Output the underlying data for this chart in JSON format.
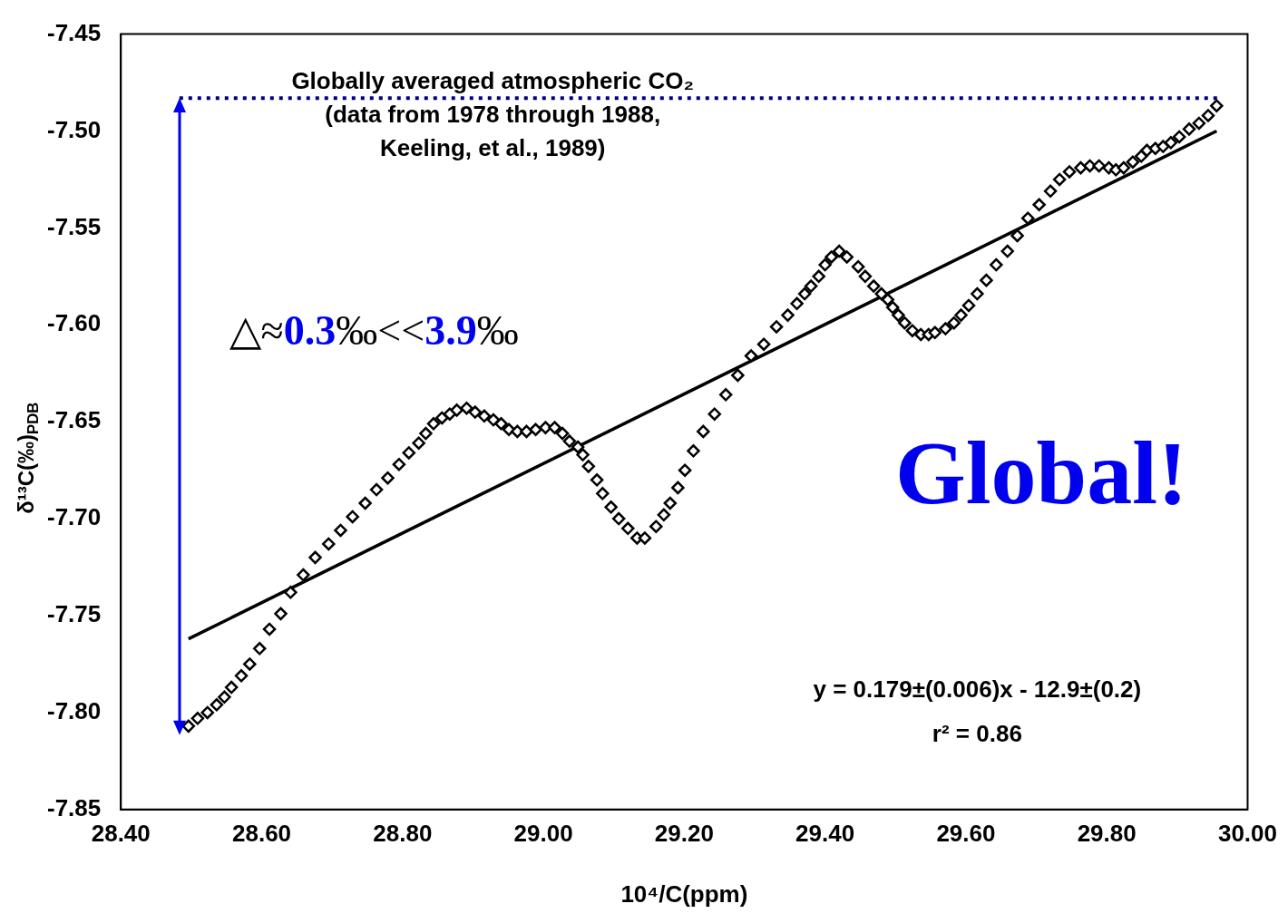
{
  "chart_data": {
    "type": "scatter",
    "xlabel": "10⁴/C(ppm)",
    "ylabel": "δ¹³C(‰)$_{PDB}$",
    "xlim": [
      28.4,
      30.0
    ],
    "xticks": [
      {
        "value": 28.4,
        "label": "28.40"
      },
      {
        "value": 28.6,
        "label": "28.60"
      },
      {
        "value": 28.8,
        "label": "28.80"
      },
      {
        "value": 29.0,
        "label": "29.00"
      },
      {
        "value": 29.2,
        "label": "29.20"
      },
      {
        "value": 29.4,
        "label": "29.40"
      },
      {
        "value": 29.6,
        "label": "29.60"
      },
      {
        "value": 29.8,
        "label": "29.80"
      },
      {
        "value": 30.0,
        "label": "30.00"
      }
    ],
    "ylim": [
      -7.85,
      -7.45
    ],
    "yticks": [
      {
        "value": -7.85,
        "label": "-7.85"
      },
      {
        "value": -7.8,
        "label": "-7.80"
      },
      {
        "value": -7.75,
        "label": "-7.75"
      },
      {
        "value": -7.7,
        "label": "-7.70"
      },
      {
        "value": -7.65,
        "label": "-7.65"
      },
      {
        "value": -7.6,
        "label": "-7.60"
      },
      {
        "value": -7.55,
        "label": "-7.55"
      },
      {
        "value": -7.5,
        "label": "-7.50"
      },
      {
        "value": -7.45,
        "label": "-7.45"
      }
    ],
    "grid": false,
    "legend": false,
    "marker": "diamond",
    "series": [
      {
        "type": "scatter",
        "color": "#000000",
        "x": [
          28.496,
          28.509,
          28.523,
          28.536,
          28.547,
          28.557,
          28.571,
          28.583,
          28.597,
          28.611,
          28.627,
          28.641,
          28.659,
          28.676,
          28.695,
          28.712,
          28.729,
          28.747,
          28.763,
          28.779,
          28.795,
          28.809,
          28.823,
          28.833,
          28.844,
          28.856,
          28.867,
          28.877,
          28.891,
          28.903,
          28.916,
          28.929,
          28.94,
          28.951,
          28.963,
          28.976,
          28.989,
          29.003,
          29.016,
          29.027,
          29.037,
          29.049,
          29.056,
          29.064,
          29.076,
          29.084,
          29.096,
          29.107,
          29.12,
          29.133,
          29.144,
          29.16,
          29.171,
          29.18,
          29.191,
          29.201,
          29.213,
          29.227,
          29.243,
          29.259,
          29.276,
          29.295,
          29.313,
          29.331,
          29.347,
          29.36,
          29.371,
          29.38,
          29.391,
          29.4,
          29.409,
          29.42,
          29.431,
          29.447,
          29.457,
          29.469,
          29.48,
          29.489,
          29.496,
          29.504,
          29.513,
          29.524,
          29.536,
          29.547,
          29.556,
          29.571,
          29.583,
          29.593,
          29.604,
          29.616,
          29.629,
          29.643,
          29.659,
          29.673,
          29.688,
          29.704,
          29.72,
          29.733,
          29.747,
          29.763,
          29.776,
          29.789,
          29.803,
          29.813,
          29.824,
          29.837,
          29.849,
          29.857,
          29.869,
          29.88,
          29.891,
          29.903,
          29.917,
          29.931,
          29.944,
          29.956
        ],
        "values": [
          -7.807,
          -7.803,
          -7.8,
          -7.796,
          -7.792,
          -7.787,
          -7.781,
          -7.775,
          -7.767,
          -7.757,
          -7.749,
          -7.738,
          -7.729,
          -7.72,
          -7.713,
          -7.706,
          -7.699,
          -7.692,
          -7.685,
          -7.679,
          -7.672,
          -7.666,
          -7.661,
          -7.656,
          -7.651,
          -7.648,
          -7.646,
          -7.644,
          -7.643,
          -7.645,
          -7.647,
          -7.649,
          -7.651,
          -7.654,
          -7.655,
          -7.655,
          -7.654,
          -7.653,
          -7.653,
          -7.656,
          -7.66,
          -7.663,
          -7.667,
          -7.673,
          -7.68,
          -7.687,
          -7.694,
          -7.7,
          -7.705,
          -7.71,
          -7.71,
          -7.704,
          -7.698,
          -7.692,
          -7.684,
          -7.675,
          -7.665,
          -7.655,
          -7.646,
          -7.636,
          -7.626,
          -7.616,
          -7.61,
          -7.601,
          -7.595,
          -7.589,
          -7.584,
          -7.58,
          -7.575,
          -7.569,
          -7.565,
          -7.562,
          -7.565,
          -7.57,
          -7.575,
          -7.58,
          -7.584,
          -7.587,
          -7.591,
          -7.595,
          -7.599,
          -7.603,
          -7.605,
          -7.605,
          -7.604,
          -7.602,
          -7.599,
          -7.595,
          -7.59,
          -7.584,
          -7.577,
          -7.569,
          -7.562,
          -7.554,
          -7.545,
          -7.538,
          -7.531,
          -7.525,
          -7.521,
          -7.519,
          -7.518,
          -7.518,
          -7.519,
          -7.52,
          -7.519,
          -7.516,
          -7.513,
          -7.51,
          -7.509,
          -7.508,
          -7.506,
          -7.503,
          -7.499,
          -7.496,
          -7.492,
          -7.487
        ]
      },
      {
        "type": "line",
        "color": "#000000",
        "marker": "none",
        "line_style": "solid",
        "x": [
          28.496,
          29.956
        ],
        "values": [
          -7.762,
          -7.5
        ]
      }
    ],
    "ref_lines": [
      {
        "axis": "y",
        "value": -7.483,
        "color": "#000080",
        "line_style": "dotted"
      }
    ],
    "annotations": [
      "Globally averaged atmospheric CO₂\n(data from 1978 through 1988,\nKeeling, et al., 1989)",
      "△≈0.3‰<<3.9‰",
      "Global!",
      "y = 0.179±(0.006)x - 12.9±(0.2)",
      "r² = 0.86"
    ]
  }
}
